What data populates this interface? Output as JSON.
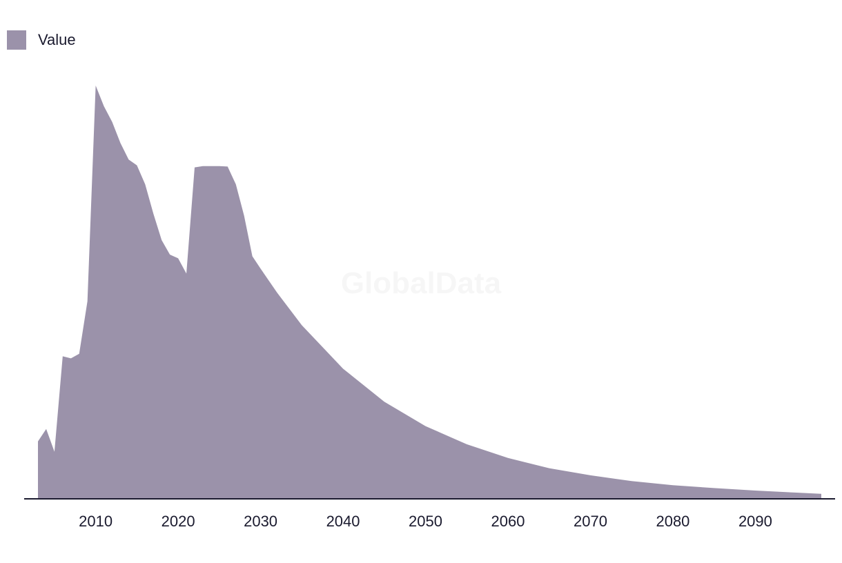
{
  "legend": {
    "label": "Value"
  },
  "watermark": "GlobalData",
  "colors": {
    "area": "#9b92aa",
    "axis": "#1a1a2e",
    "text": "#1a1a2e"
  },
  "chart_data": {
    "type": "area",
    "title": "",
    "xlabel": "",
    "ylabel": "",
    "legend_position": "top-left",
    "grid": false,
    "xlim": [
      2003,
      2098
    ],
    "ylim": [
      0,
      100
    ],
    "x_ticks": [
      2010,
      2020,
      2030,
      2040,
      2050,
      2060,
      2070,
      2080,
      2090
    ],
    "series": [
      {
        "name": "Value",
        "x": [
          2003,
          2004,
          2005,
          2006,
          2007,
          2008,
          2009,
          2010,
          2011,
          2012,
          2013,
          2014,
          2015,
          2016,
          2017,
          2018,
          2019,
          2020,
          2021,
          2022,
          2023,
          2024,
          2025,
          2026,
          2027,
          2028,
          2029,
          2030,
          2032,
          2035,
          2040,
          2045,
          2050,
          2055,
          2060,
          2065,
          2070,
          2075,
          2080,
          2085,
          2090,
          2095,
          2098
        ],
        "values": [
          13.9,
          16.9,
          11.4,
          34.5,
          34.0,
          35.1,
          47.8,
          100.0,
          95.0,
          91.2,
          86.1,
          82.1,
          80.7,
          76.1,
          69.0,
          62.6,
          59.1,
          58.2,
          54.5,
          80.2,
          80.5,
          80.5,
          80.5,
          80.4,
          76.1,
          68.5,
          58.7,
          55.7,
          49.9,
          42.0,
          31.5,
          23.5,
          17.6,
          13.2,
          9.9,
          7.4,
          5.7,
          4.3,
          3.3,
          2.6,
          2.0,
          1.5,
          1.2
        ]
      }
    ]
  }
}
